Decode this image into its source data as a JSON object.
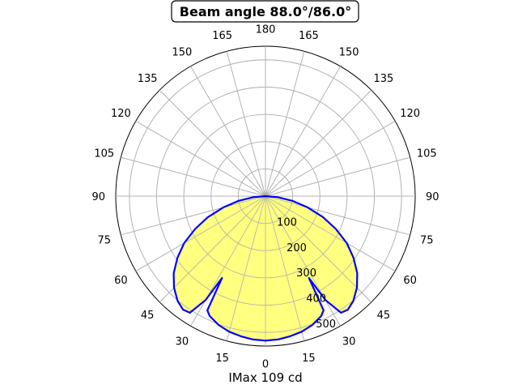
{
  "chart_data": {
    "type": "polar",
    "title": "Beam angle 88.0°/86.0°",
    "xlabel": "IMax 109 cd",
    "angle_tick_labels": [
      "0",
      "15",
      "30",
      "45",
      "60",
      "75",
      "90",
      "105",
      "120",
      "135",
      "150",
      "165",
      "180",
      "165",
      "150",
      "135",
      "120",
      "105",
      "90",
      "75",
      "60",
      "45",
      "30",
      "15"
    ],
    "radial_tick_labels": [
      "100",
      "200",
      "300",
      "400",
      "500"
    ],
    "rlim": [
      0,
      550
    ],
    "grid": true,
    "series": [
      {
        "angles_deg": [
          0,
          5,
          10,
          15,
          20,
          25,
          27,
          28,
          30,
          33,
          36,
          40,
          45,
          50,
          55,
          60,
          65,
          70,
          75,
          80,
          85,
          90
        ],
        "values": [
          530,
          528,
          522,
          515,
          503,
          485,
          470,
          340,
          440,
          510,
          515,
          502,
          475,
          440,
          395,
          345,
          285,
          225,
          160,
          100,
          45,
          0
        ],
        "line_color": "#0000ff",
        "fill_color": "#ffff80"
      }
    ]
  }
}
